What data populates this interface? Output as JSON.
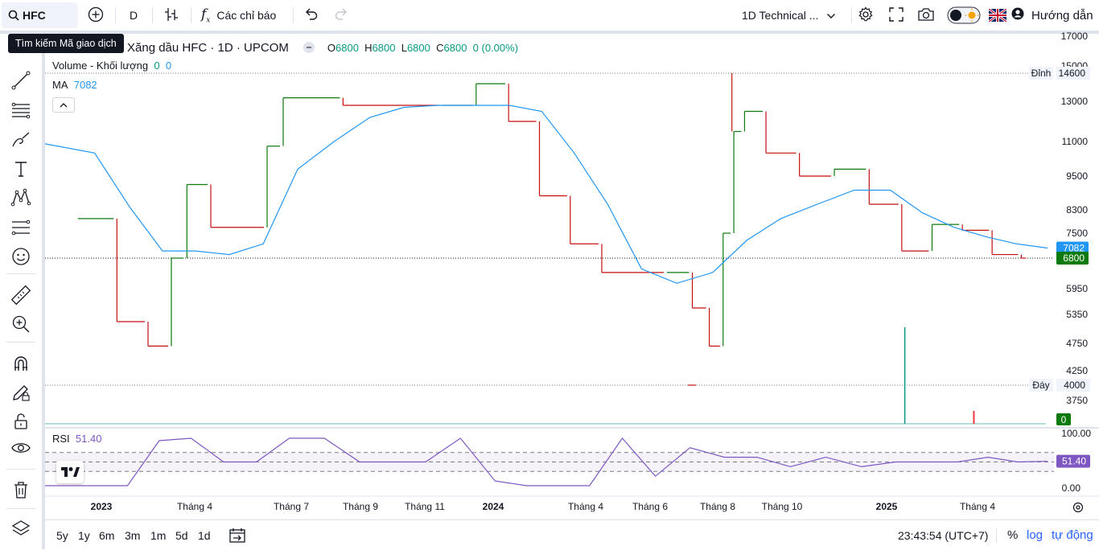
{
  "topbar": {
    "symbol": "HFC",
    "interval": "D",
    "indicators_label": "Các chỉ báo",
    "layout_name": "1D Technical ...",
    "guide_label": "Hướng dẫn"
  },
  "tooltip": "Tìm kiếm Mã giao dịch",
  "legend": {
    "title": "Xăng dầu HFC · 1D · UPCOM",
    "o_label": "O",
    "o_value": "6800",
    "h_label": "H",
    "h_value": "6800",
    "l_label": "L",
    "l_value": "6800",
    "c_label": "C",
    "c_value": "6800",
    "change": "0 (0.00%)",
    "volume_label": "Volume - Khối lượng",
    "volume_v1": "0",
    "volume_v2": "0",
    "ma_label": "MA",
    "ma_value": "7082",
    "rsi_label": "RSI",
    "rsi_value": "51.40"
  },
  "price_axis": {
    "ticks": [
      "17000",
      "15000",
      "14600",
      "13000",
      "11000",
      "9500",
      "8300",
      "7500",
      "6800",
      "5950",
      "5350",
      "4750",
      "4250",
      "4000",
      "3750"
    ],
    "high_tag_label": "Đỉnh",
    "high_value": "14600",
    "low_tag_label": "Đáy",
    "low_value": "4000",
    "ma_tag": "7082",
    "price_tag": "6800",
    "volume_tag": "0"
  },
  "rsi_axis": {
    "ticks": [
      "100.00",
      "0.00"
    ],
    "tag": "51.40"
  },
  "time_axis": [
    "2023",
    "Tháng 4",
    "Tháng 7",
    "Tháng 9",
    "Tháng 11",
    "2024",
    "Tháng 4",
    "Tháng 6",
    "Tháng 8",
    "Tháng 10",
    "2025",
    "Tháng 4"
  ],
  "bottombar": {
    "ranges": [
      "5y",
      "1y",
      "6m",
      "3m",
      "1m",
      "5d",
      "1d"
    ],
    "clock": "23:43:54 (UTC+7)",
    "pct_label": "%",
    "log_label": "log",
    "auto_label": "tự động"
  },
  "colors": {
    "up": "#089981",
    "down": "#f23645",
    "ma": "#2196f3",
    "rsi": "#7e57c2",
    "candle_up": "#0d7a0d",
    "candle_down": "#c40f0f"
  },
  "chart_data": [
    {
      "type": "ohlc",
      "symbol": "HFC",
      "interval": "1D",
      "exchange": "UPCOM",
      "x_labels": [
        "2023",
        "Tháng 4",
        "Tháng 7",
        "Tháng 9",
        "Tháng 11",
        "2024",
        "Tháng 4",
        "Tháng 6",
        "Tháng 8",
        "Tháng 10",
        "2025",
        "Tháng 4"
      ],
      "close_series_approx": [
        [
          "2022-12",
          8000
        ],
        [
          "2023-01",
          5200
        ],
        [
          "2023-02",
          4700
        ],
        [
          "2023-03",
          6800
        ],
        [
          "2023-03",
          9200
        ],
        [
          "2023-04",
          7700
        ],
        [
          "2023-06",
          10800
        ],
        [
          "2023-06",
          13200
        ],
        [
          "2023-08",
          12800
        ],
        [
          "2023-11",
          12800
        ],
        [
          "2023-12",
          14000
        ],
        [
          "2024-01",
          12000
        ],
        [
          "2024-02",
          8800
        ],
        [
          "2024-03",
          7200
        ],
        [
          "2024-04",
          6400
        ],
        [
          "2024-06",
          6400
        ],
        [
          "2024-07",
          5500
        ],
        [
          "2024-07",
          4700
        ],
        [
          "2024-08",
          7500
        ],
        [
          "2024-08",
          11500
        ],
        [
          "2024-08",
          12500
        ],
        [
          "2024-09",
          10500
        ],
        [
          "2024-10",
          9500
        ],
        [
          "2024-11",
          9800
        ],
        [
          "2024-12",
          8500
        ],
        [
          "2025-01",
          7000
        ],
        [
          "2025-02",
          7800
        ],
        [
          "2025-03",
          7600
        ],
        [
          "2025-04",
          6900
        ],
        [
          "2025-05",
          6800
        ]
      ],
      "high": 14600,
      "low": 4000,
      "last": 6800,
      "ylim": [
        3450,
        17100
      ]
    },
    {
      "type": "line",
      "name": "MA",
      "last": 7082,
      "values_approx": [
        10900,
        10500,
        8400,
        7000,
        7000,
        6900,
        7200,
        9800,
        11000,
        12200,
        12700,
        12800,
        12800,
        12800,
        12500,
        10500,
        8500,
        6500,
        6100,
        6400,
        7300,
        8000,
        8500,
        9000,
        9000,
        8200,
        7700,
        7400,
        7200,
        7082
      ]
    },
    {
      "type": "line",
      "name": "RSI",
      "last": 51.4,
      "ylim": [
        0,
        100
      ],
      "ticks": [
        100,
        0
      ],
      "values_approx": [
        0,
        0,
        0,
        95,
        100,
        50,
        50,
        100,
        100,
        50,
        50,
        50,
        100,
        10,
        0,
        0,
        0,
        100,
        20,
        80,
        60,
        60,
        40,
        60,
        40,
        50,
        50,
        50,
        60,
        50,
        51.4
      ]
    },
    {
      "type": "bar",
      "name": "Volume - Khối lượng",
      "last": 0
    }
  ]
}
